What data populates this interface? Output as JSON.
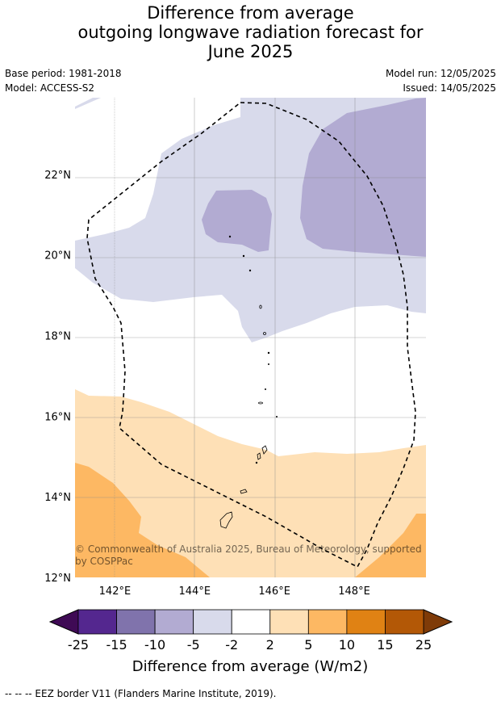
{
  "title_lines": [
    "Difference from average",
    "outgoing longwave radiation forecast for",
    "June 2025"
  ],
  "meta": {
    "base_period": "Base period: 1981-2018",
    "model": "Model: ACCESS-S2",
    "model_run": "Model run: 12/05/2025",
    "issued": "Issued: 14/05/2025"
  },
  "copyright": [
    "© Commonwealth of Australia 2025, Bureau of Meteorology, supported",
    "by COSPPac"
  ],
  "footnote": "--  --  -- EEZ border V11 (Flanders Marine Institute, 2019).",
  "colors": {
    "neg25": "#3f0a55",
    "neg15": "#54278f",
    "neg10": "#8073ac",
    "neg5": "#b2abd2",
    "neg2": "#d8daeb",
    "zero": "#ffffff",
    "pos2": "#fee0b6",
    "pos5": "#fdb863",
    "pos10": "#e08214",
    "pos15": "#b35806",
    "pos25": "#7f3b08"
  },
  "chart_data": {
    "type": "heatmap",
    "title": "Difference from average outgoing longwave radiation forecast for June 2025",
    "x_ticks": [
      "142°E",
      "144°E",
      "146°E",
      "148°E"
    ],
    "x_tick_values": [
      142,
      144,
      146,
      148
    ],
    "y_ticks": [
      "12°N",
      "14°N",
      "16°N",
      "18°N",
      "20°N",
      "22°N"
    ],
    "y_tick_values": [
      12,
      14,
      16,
      18,
      20,
      22
    ],
    "xlim": [
      141,
      149.8
    ],
    "ylim": [
      12,
      23.9
    ],
    "colorbar": {
      "label": "Difference from average (W/m2)",
      "ticks": [
        "-25",
        "-15",
        "-10",
        "-5",
        "-2",
        "2",
        "5",
        "10",
        "15",
        "25"
      ],
      "boundaries": [
        -25,
        -15,
        -10,
        -5,
        -2,
        2,
        5,
        10,
        15,
        25
      ]
    },
    "regions": [
      {
        "name": "-5 to -2 W/m2",
        "color_key": "neg2",
        "description": "northern half"
      },
      {
        "name": "-10 to -5 W/m2",
        "color_key": "neg5",
        "description": "north-east and central blob"
      },
      {
        "name": "-2 to 2 W/m2",
        "color_key": "zero",
        "description": "middle band"
      },
      {
        "name": "2 to 5 W/m2",
        "color_key": "pos2",
        "description": "south"
      },
      {
        "name": "5 to 10 W/m2",
        "color_key": "pos5",
        "description": "south-west and south-east corners"
      }
    ]
  }
}
